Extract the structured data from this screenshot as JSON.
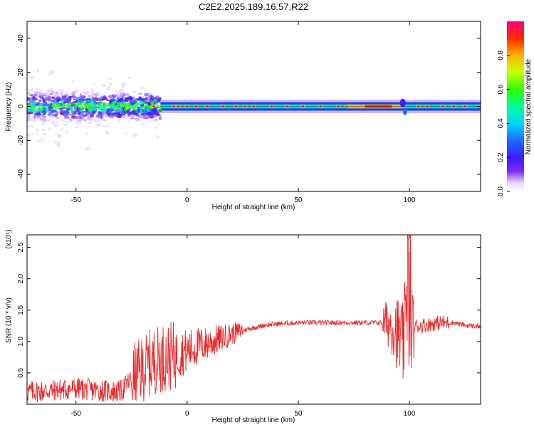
{
  "title": "C2E2.2025.189.16.57.R22",
  "chart_data": [
    {
      "type": "heatmap",
      "xlabel": "Height of straight line (km)",
      "ylabel": "Frequency (Hz)",
      "xlim": [
        -72,
        132
      ],
      "ylim": [
        -50,
        50
      ],
      "x_ticks": [
        -50,
        0,
        50,
        100
      ],
      "y_ticks": [
        -40,
        -20,
        0,
        20,
        40
      ],
      "grid": false,
      "colorbar": {
        "label": "Normalized spectral amplitude",
        "range": [
          0,
          1
        ],
        "ticks": [
          0.0,
          0.2,
          0.4,
          0.6,
          0.8
        ]
      },
      "description_values": {
        "scattered_low_amplitude_region_x": [
          -72,
          -12
        ],
        "scattered_freq_spread": [
          -20,
          15
        ],
        "band_center_freq": 0,
        "band_half_width_freq": [
          -3,
          3
        ],
        "high_amplitude_segment_x": [
          72,
          98
        ],
        "disturbance_x": 97
      }
    },
    {
      "type": "line",
      "xlabel": "Height of straight line (km)",
      "ylabel": "SNR (10 * v/v)",
      "y_multiplier": "(x10⁴)",
      "xlim": [
        -72,
        132
      ],
      "ylim": [
        0,
        2.7
      ],
      "x_ticks": [
        -50,
        0,
        50,
        100
      ],
      "y_ticks": [
        0.5,
        1.0,
        1.5,
        2.0,
        2.5
      ],
      "series": [
        {
          "color": "#e8282b",
          "x": [
            -72,
            -60,
            -50,
            -40,
            -30,
            -25,
            -20,
            -15,
            -10,
            -5,
            0,
            5,
            10,
            15,
            20,
            25,
            30,
            35,
            40,
            50,
            60,
            70,
            80,
            85,
            90,
            93,
            95,
            97,
            99,
            100,
            101,
            103,
            105,
            110,
            115,
            120,
            125,
            132
          ],
          "y": [
            0.2,
            0.22,
            0.25,
            0.22,
            0.2,
            0.4,
            0.55,
            0.7,
            0.75,
            0.78,
            0.85,
            0.92,
            0.98,
            1.05,
            1.12,
            1.18,
            1.22,
            1.26,
            1.28,
            1.3,
            1.3,
            1.3,
            1.3,
            1.3,
            1.3,
            1.25,
            1.1,
            0.9,
            1.6,
            1.0,
            1.2,
            1.25,
            1.25,
            1.28,
            1.3,
            1.3,
            1.26,
            1.24
          ]
        }
      ]
    }
  ]
}
